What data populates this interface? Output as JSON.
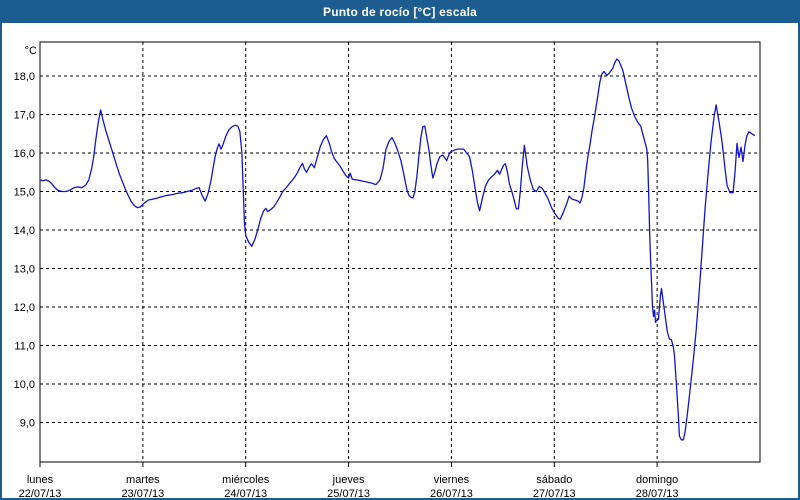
{
  "window": {
    "title": "Punto de rocío [°C] escala",
    "accent_color": "#1d5c8e",
    "background_color": "#ffffff"
  },
  "chart_data": {
    "type": "line",
    "title": "Punto de rocío [°C] escala",
    "unit_label": "°C",
    "grid": "dashed",
    "legend": "none",
    "line_color": "#1414ce",
    "text_color": "#000000",
    "ylim": [
      8.0,
      18.9
    ],
    "y_ticks": [
      18,
      17,
      16,
      15,
      14,
      13,
      12,
      11,
      10,
      9
    ],
    "y_tick_labels": [
      "18,0",
      "17,0",
      "16,0",
      "15,0",
      "14,0",
      "13,0",
      "12,0",
      "11,0",
      "10,0",
      "9,0"
    ],
    "x_days": [
      {
        "name": "lunes",
        "date": "22/07/13"
      },
      {
        "name": "martes",
        "date": "23/07/13"
      },
      {
        "name": "miércoles",
        "date": "24/07/13"
      },
      {
        "name": "jueves",
        "date": "25/07/13"
      },
      {
        "name": "viernes",
        "date": "26/07/13"
      },
      {
        "name": "sábado",
        "date": "27/07/13"
      },
      {
        "name": "domingo",
        "date": "28/07/13"
      }
    ],
    "series": [
      {
        "name": "Punto de rocío",
        "x_unit": "days_from_monday_00h",
        "points": [
          [
            0.0,
            15.3
          ],
          [
            0.029,
            15.28
          ],
          [
            0.058,
            15.3
          ],
          [
            0.087,
            15.27
          ],
          [
            0.116,
            15.2
          ],
          [
            0.145,
            15.1
          ],
          [
            0.174,
            15.03
          ],
          [
            0.213,
            15.0
          ],
          [
            0.251,
            15.0
          ],
          [
            0.29,
            15.03
          ],
          [
            0.329,
            15.1
          ],
          [
            0.367,
            15.12
          ],
          [
            0.406,
            15.1
          ],
          [
            0.445,
            15.17
          ],
          [
            0.474,
            15.3
          ],
          [
            0.503,
            15.6
          ],
          [
            0.522,
            15.9
          ],
          [
            0.541,
            16.3
          ],
          [
            0.561,
            16.7
          ],
          [
            0.58,
            17.0
          ],
          [
            0.59,
            17.12
          ],
          [
            0.609,
            16.9
          ],
          [
            0.638,
            16.6
          ],
          [
            0.667,
            16.35
          ],
          [
            0.696,
            16.1
          ],
          [
            0.725,
            15.85
          ],
          [
            0.754,
            15.6
          ],
          [
            0.773,
            15.45
          ],
          [
            0.802,
            15.25
          ],
          [
            0.831,
            15.05
          ],
          [
            0.86,
            14.88
          ],
          [
            0.889,
            14.73
          ],
          [
            0.918,
            14.63
          ],
          [
            0.947,
            14.58
          ],
          [
            0.976,
            14.6
          ],
          [
            1.005,
            14.68
          ],
          [
            1.054,
            14.78
          ],
          [
            1.093,
            14.8
          ],
          [
            1.141,
            14.83
          ],
          [
            1.189,
            14.87
          ],
          [
            1.238,
            14.9
          ],
          [
            1.286,
            14.92
          ],
          [
            1.334,
            14.95
          ],
          [
            1.383,
            14.97
          ],
          [
            1.431,
            15.0
          ],
          [
            1.479,
            15.03
          ],
          [
            1.518,
            15.08
          ],
          [
            1.547,
            15.1
          ],
          [
            1.576,
            14.9
          ],
          [
            1.605,
            14.75
          ],
          [
            1.634,
            14.95
          ],
          [
            1.663,
            15.3
          ],
          [
            1.682,
            15.6
          ],
          [
            1.702,
            15.9
          ],
          [
            1.721,
            16.1
          ],
          [
            1.74,
            16.24
          ],
          [
            1.76,
            16.1
          ],
          [
            1.779,
            16.22
          ],
          [
            1.808,
            16.45
          ],
          [
            1.837,
            16.6
          ],
          [
            1.866,
            16.68
          ],
          [
            1.895,
            16.72
          ],
          [
            1.924,
            16.7
          ],
          [
            1.943,
            16.55
          ],
          [
            1.963,
            16.0
          ],
          [
            1.977,
            15.0
          ],
          [
            1.987,
            14.2
          ],
          [
            2.001,
            13.85
          ],
          [
            2.03,
            13.68
          ],
          [
            2.059,
            13.58
          ],
          [
            2.088,
            13.75
          ],
          [
            2.117,
            14.0
          ],
          [
            2.146,
            14.3
          ],
          [
            2.175,
            14.5
          ],
          [
            2.195,
            14.56
          ],
          [
            2.214,
            14.48
          ],
          [
            2.243,
            14.53
          ],
          [
            2.272,
            14.6
          ],
          [
            2.301,
            14.72
          ],
          [
            2.33,
            14.85
          ],
          [
            2.359,
            15.0
          ],
          [
            2.388,
            15.08
          ],
          [
            2.417,
            15.18
          ],
          [
            2.446,
            15.27
          ],
          [
            2.475,
            15.37
          ],
          [
            2.504,
            15.5
          ],
          [
            2.533,
            15.65
          ],
          [
            2.552,
            15.73
          ],
          [
            2.572,
            15.58
          ],
          [
            2.591,
            15.5
          ],
          [
            2.62,
            15.65
          ],
          [
            2.639,
            15.72
          ],
          [
            2.668,
            15.62
          ],
          [
            2.697,
            15.9
          ],
          [
            2.726,
            16.18
          ],
          [
            2.755,
            16.35
          ],
          [
            2.784,
            16.45
          ],
          [
            2.813,
            16.25
          ],
          [
            2.833,
            16.05
          ],
          [
            2.862,
            15.85
          ],
          [
            2.891,
            15.75
          ],
          [
            2.92,
            15.65
          ],
          [
            2.949,
            15.52
          ],
          [
            2.978,
            15.4
          ],
          [
            3.0,
            15.35
          ],
          [
            3.016,
            15.48
          ],
          [
            3.035,
            15.32
          ],
          [
            3.074,
            15.3
          ],
          [
            3.122,
            15.28
          ],
          [
            3.171,
            15.25
          ],
          [
            3.219,
            15.22
          ],
          [
            3.267,
            15.18
          ],
          [
            3.306,
            15.3
          ],
          [
            3.335,
            15.6
          ],
          [
            3.364,
            16.1
          ],
          [
            3.393,
            16.3
          ],
          [
            3.422,
            16.4
          ],
          [
            3.451,
            16.25
          ],
          [
            3.48,
            16.05
          ],
          [
            3.509,
            15.8
          ],
          [
            3.529,
            15.55
          ],
          [
            3.548,
            15.3
          ],
          [
            3.567,
            15.05
          ],
          [
            3.587,
            14.9
          ],
          [
            3.606,
            14.85
          ],
          [
            3.625,
            14.83
          ],
          [
            3.645,
            15.0
          ],
          [
            3.664,
            15.4
          ],
          [
            3.683,
            15.9
          ],
          [
            3.703,
            16.4
          ],
          [
            3.722,
            16.68
          ],
          [
            3.741,
            16.7
          ],
          [
            3.761,
            16.4
          ],
          [
            3.78,
            16.1
          ],
          [
            3.799,
            15.7
          ],
          [
            3.819,
            15.35
          ],
          [
            3.838,
            15.5
          ],
          [
            3.857,
            15.7
          ],
          [
            3.886,
            15.9
          ],
          [
            3.915,
            15.95
          ],
          [
            3.935,
            15.88
          ],
          [
            3.954,
            15.8
          ],
          [
            3.973,
            15.95
          ],
          [
            3.993,
            16.03
          ],
          [
            4.032,
            16.08
          ],
          [
            4.061,
            16.1
          ],
          [
            4.09,
            16.1
          ],
          [
            4.119,
            16.1
          ],
          [
            4.148,
            16.0
          ],
          [
            4.177,
            15.9
          ],
          [
            4.206,
            15.5
          ],
          [
            4.235,
            15.0
          ],
          [
            4.254,
            14.7
          ],
          [
            4.274,
            14.5
          ],
          [
            4.303,
            14.85
          ],
          [
            4.332,
            15.15
          ],
          [
            4.361,
            15.3
          ],
          [
            4.39,
            15.38
          ],
          [
            4.419,
            15.45
          ],
          [
            4.448,
            15.55
          ],
          [
            4.467,
            15.45
          ],
          [
            4.506,
            15.68
          ],
          [
            4.525,
            15.72
          ],
          [
            4.545,
            15.5
          ],
          [
            4.564,
            15.2
          ],
          [
            4.593,
            14.95
          ],
          [
            4.612,
            14.75
          ],
          [
            4.631,
            14.55
          ],
          [
            4.651,
            14.55
          ],
          [
            4.67,
            15.0
          ],
          [
            4.69,
            15.7
          ],
          [
            4.709,
            16.2
          ],
          [
            4.738,
            15.64
          ],
          [
            4.767,
            15.3
          ],
          [
            4.796,
            15.05
          ],
          [
            4.825,
            15.0
          ],
          [
            4.854,
            15.13
          ],
          [
            4.883,
            15.08
          ],
          [
            4.912,
            14.95
          ],
          [
            4.941,
            14.8
          ],
          [
            4.97,
            14.6
          ],
          [
            5.0,
            14.45
          ],
          [
            5.019,
            14.38
          ],
          [
            5.039,
            14.3
          ],
          [
            5.058,
            14.28
          ],
          [
            5.087,
            14.45
          ],
          [
            5.116,
            14.65
          ],
          [
            5.145,
            14.88
          ],
          [
            5.174,
            14.8
          ],
          [
            5.203,
            14.78
          ],
          [
            5.232,
            14.75
          ],
          [
            5.251,
            14.7
          ],
          [
            5.269,
            14.85
          ],
          [
            5.288,
            15.1
          ],
          [
            5.308,
            15.55
          ],
          [
            5.327,
            15.9
          ],
          [
            5.346,
            16.2
          ],
          [
            5.366,
            16.55
          ],
          [
            5.395,
            17.0
          ],
          [
            5.424,
            17.5
          ],
          [
            5.443,
            17.85
          ],
          [
            5.463,
            18.05
          ],
          [
            5.482,
            18.12
          ],
          [
            5.511,
            18.02
          ],
          [
            5.53,
            18.06
          ],
          [
            5.569,
            18.2
          ],
          [
            5.588,
            18.35
          ],
          [
            5.608,
            18.44
          ],
          [
            5.627,
            18.4
          ],
          [
            5.666,
            18.15
          ],
          [
            5.695,
            17.8
          ],
          [
            5.724,
            17.45
          ],
          [
            5.753,
            17.15
          ],
          [
            5.782,
            16.95
          ],
          [
            5.811,
            16.8
          ],
          [
            5.84,
            16.7
          ],
          [
            5.86,
            16.5
          ],
          [
            5.88,
            16.3
          ],
          [
            5.899,
            16.1
          ],
          [
            5.908,
            15.8
          ],
          [
            5.917,
            15.0
          ],
          [
            5.927,
            14.0
          ],
          [
            5.936,
            13.2
          ],
          [
            5.946,
            12.6
          ],
          [
            5.955,
            12.0
          ],
          [
            5.965,
            11.75
          ],
          [
            5.975,
            11.92
          ],
          [
            5.984,
            11.6
          ],
          [
            5.994,
            11.65
          ],
          [
            6.013,
            11.68
          ],
          [
            6.032,
            12.3
          ],
          [
            6.042,
            12.48
          ],
          [
            6.061,
            12.1
          ],
          [
            6.081,
            11.7
          ],
          [
            6.1,
            11.35
          ],
          [
            6.119,
            11.17
          ],
          [
            6.139,
            11.15
          ],
          [
            6.158,
            10.95
          ],
          [
            6.168,
            10.75
          ],
          [
            6.187,
            10.0
          ],
          [
            6.206,
            9.2
          ],
          [
            6.216,
            8.65
          ],
          [
            6.235,
            8.55
          ],
          [
            6.255,
            8.55
          ],
          [
            6.274,
            8.8
          ],
          [
            6.293,
            9.2
          ],
          [
            6.322,
            9.9
          ],
          [
            6.351,
            10.6
          ],
          [
            6.38,
            11.4
          ],
          [
            6.409,
            12.4
          ],
          [
            6.438,
            13.5
          ],
          [
            6.467,
            14.6
          ],
          [
            6.496,
            15.5
          ],
          [
            6.525,
            16.3
          ],
          [
            6.554,
            16.95
          ],
          [
            6.573,
            17.25
          ],
          [
            6.602,
            16.8
          ],
          [
            6.631,
            16.3
          ],
          [
            6.66,
            15.6
          ],
          [
            6.68,
            15.15
          ],
          [
            6.709,
            14.97
          ],
          [
            6.738,
            14.97
          ],
          [
            6.757,
            15.5
          ],
          [
            6.776,
            16.25
          ],
          [
            6.796,
            15.88
          ],
          [
            6.815,
            16.15
          ],
          [
            6.835,
            15.78
          ],
          [
            6.854,
            16.2
          ],
          [
            6.873,
            16.45
          ],
          [
            6.893,
            16.55
          ],
          [
            6.922,
            16.5
          ],
          [
            6.951,
            16.45
          ]
        ]
      }
    ]
  }
}
